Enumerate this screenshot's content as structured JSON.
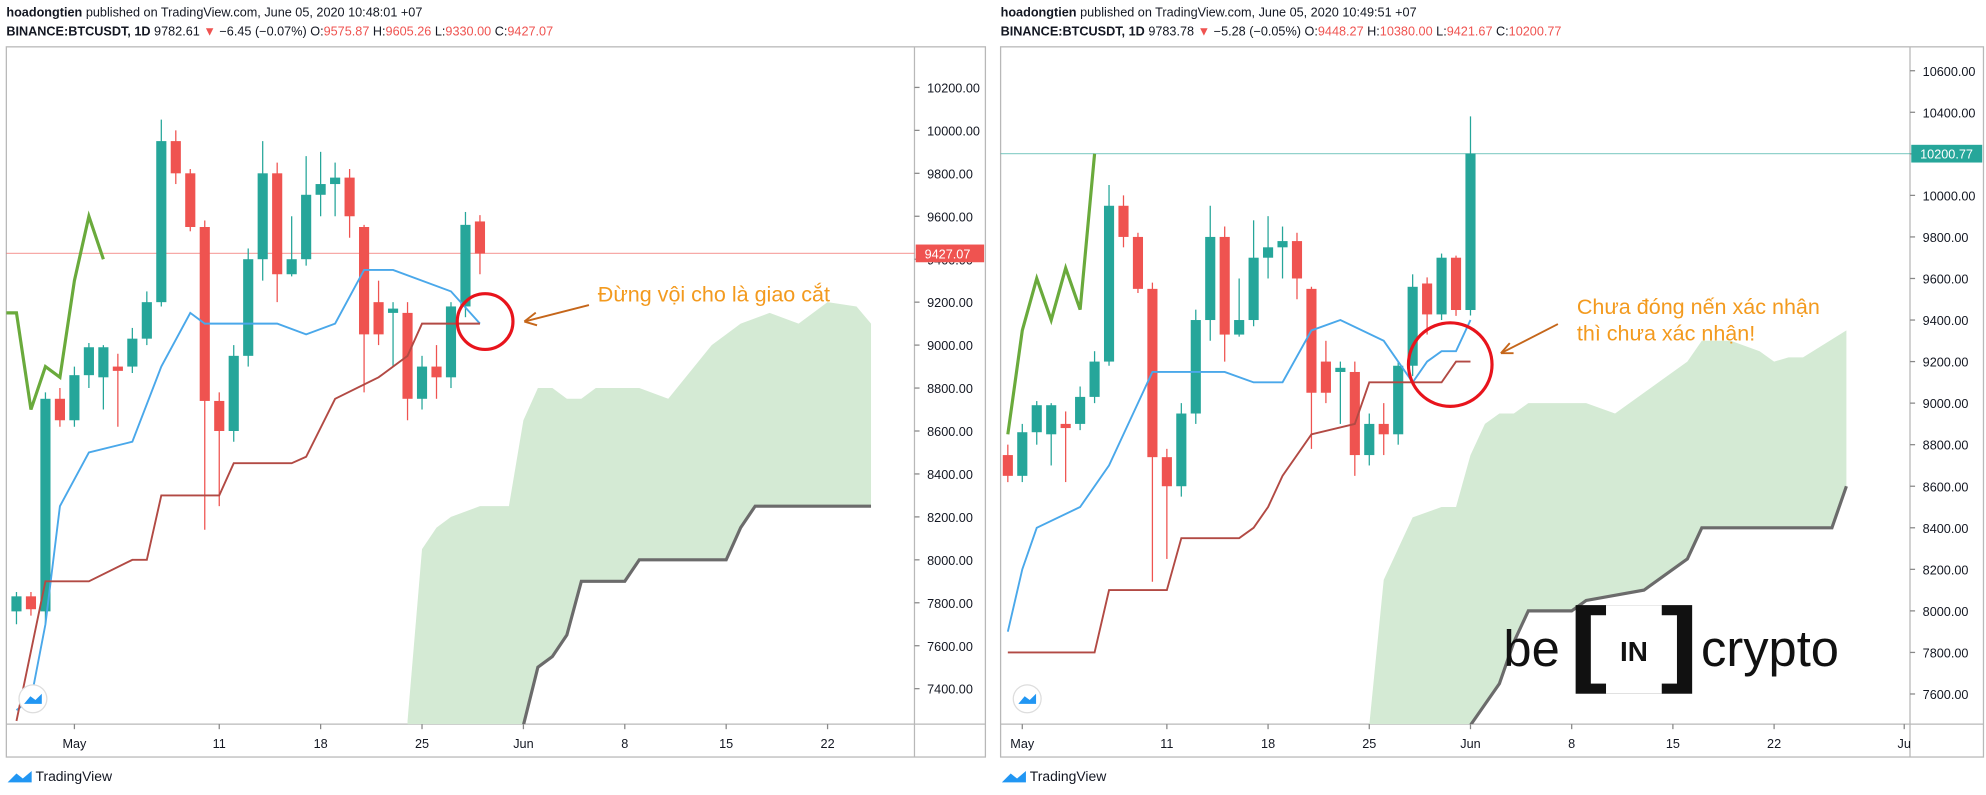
{
  "chart_data": [
    {
      "type": "candlestick",
      "header": {
        "author": "hoadongtien",
        "published": "published on TradingView.com, June 05, 2020 10:48:01 +07",
        "symbol": "BINANCE:BTCUSDT, 1D",
        "last": "9782.61",
        "arrow": "▼",
        "change": "−6.45 (−0.07%)",
        "ohlc": [
          {
            "label": "O:",
            "value": "9575.87"
          },
          {
            "label": "H:",
            "value": "9605.26"
          },
          {
            "label": "L:",
            "value": "9330.00"
          },
          {
            "label": "C:",
            "value": "9427.07"
          }
        ]
      },
      "candles": {
        "x": [
          -3,
          -2,
          -1,
          0,
          1,
          2,
          3,
          4,
          5,
          6,
          7,
          8,
          9,
          10,
          11,
          12,
          13,
          14,
          15,
          16,
          17,
          18,
          19,
          20,
          21,
          22,
          23,
          24,
          25,
          26,
          27,
          28,
          29
        ],
        "open": [
          7760,
          7830,
          7760,
          8750,
          8650,
          8860,
          8850,
          8900,
          8900,
          9030,
          9200,
          9950,
          9800,
          9550,
          8740,
          8600,
          8950,
          9400,
          9800,
          9330,
          9400,
          9700,
          9750,
          9780,
          9550,
          9200,
          9150,
          9150,
          8750,
          8900,
          8850,
          9180,
          9575.87
        ],
        "high": [
          7850,
          7850,
          8780,
          8800,
          8900,
          9010,
          9000,
          8960,
          9080,
          9250,
          10050,
          10000,
          9820,
          9580,
          8780,
          9000,
          9450,
          9950,
          9850,
          9600,
          9880,
          9900,
          9850,
          9820,
          9560,
          9300,
          9200,
          9200,
          8950,
          9000,
          9200,
          9620,
          9605.26
        ],
        "low": [
          7700,
          7740,
          7700,
          8620,
          8620,
          8800,
          8700,
          8620,
          8870,
          9000,
          9180,
          9750,
          9530,
          8140,
          8250,
          8550,
          8900,
          9300,
          9200,
          9320,
          9370,
          9600,
          9600,
          9500,
          8780,
          9000,
          8900,
          8650,
          8700,
          8750,
          8800,
          9130,
          9330
        ],
        "close": [
          7830,
          7770,
          8750,
          8650,
          8860,
          8990,
          8990,
          8880,
          9030,
          9200,
          9950,
          9800,
          9550,
          8740,
          8600,
          8950,
          9400,
          9800,
          9330,
          9400,
          9700,
          9750,
          9780,
          9600,
          9050,
          9050,
          9170,
          8750,
          8900,
          8850,
          9180,
          9560,
          9427.07
        ],
        "up_color": "#26a69a",
        "down_color": "#ef5350"
      },
      "lines": [
        {
          "color": "#4aa8ea",
          "x": [
            -3,
            -2,
            -1,
            0,
            2,
            5,
            7,
            9,
            10,
            11,
            15,
            17,
            19,
            21,
            23,
            27,
            29
          ],
          "values": [
            7300,
            7350,
            7700,
            8250,
            8500,
            8550,
            8900,
            9150,
            9100,
            9100,
            9100,
            9050,
            9100,
            9350,
            9350,
            9250,
            9100
          ]
        },
        {
          "color": "#b24a44",
          "x": [
            -3,
            -1,
            2,
            5,
            6,
            7,
            11,
            12,
            16,
            17,
            19,
            22,
            24,
            25,
            29
          ],
          "values": [
            7250,
            7900,
            7900,
            8000,
            8000,
            8300,
            8300,
            8450,
            8450,
            8480,
            8750,
            8850,
            8950,
            9100,
            9100
          ]
        },
        {
          "color": "#6aaa3c",
          "x": [
            -4,
            -3,
            -2,
            -1,
            0,
            1,
            2,
            3
          ],
          "values": [
            9150,
            9150,
            8700,
            8900,
            8850,
            9300,
            9600,
            9400
          ]
        }
      ],
      "cloud": {
        "fill": "#d4ead4",
        "line_color": "#6b6b6b",
        "upper": {
          "x": [
            24,
            25,
            26,
            27,
            29,
            31,
            32,
            33,
            34,
            35,
            36,
            37,
            40,
            42,
            45,
            47,
            49,
            51,
            53,
            55,
            56
          ],
          "values": [
            7250,
            8050,
            8150,
            8200,
            8250,
            8250,
            8650,
            8800,
            8800,
            8750,
            8750,
            8800,
            8800,
            8750,
            9000,
            9100,
            9150,
            9100,
            9200,
            9180,
            9100
          ]
        },
        "lower": {
          "x": [
            24,
            32,
            33,
            34,
            35,
            36,
            39,
            40,
            46,
            47,
            48,
            56
          ],
          "values": [
            7000,
            7230,
            7500,
            7550,
            7650,
            7900,
            7900,
            8000,
            8000,
            8150,
            8250,
            8250
          ]
        }
      },
      "xlim": [
        -3.7,
        59
      ],
      "xticks": [
        {
          "value": 1,
          "label": "May"
        },
        11,
        18,
        25,
        {
          "value": 32,
          "label": "Jun"
        },
        {
          "value": 39,
          "label": "8"
        },
        {
          "value": 46,
          "label": "15"
        },
        {
          "value": 53,
          "label": "22"
        }
      ],
      "ylim": [
        7235,
        10389
      ],
      "yticks": [
        {
          "value": 7400,
          "label": "7400.00"
        },
        {
          "value": 7600,
          "label": "7600.00"
        },
        {
          "value": 7800,
          "label": "7800.00"
        },
        {
          "value": 8000,
          "label": "8000.00"
        },
        {
          "value": 8200,
          "label": "8200.00"
        },
        {
          "value": 8400,
          "label": "8400.00"
        },
        {
          "value": 8600,
          "label": "8600.00"
        },
        {
          "value": 8800,
          "label": "8800.00"
        },
        {
          "value": 9000,
          "label": "9000.00"
        },
        {
          "value": 9200,
          "label": "9200.00"
        },
        {
          "value": 9400,
          "label": "9400.00"
        },
        {
          "value": 9600,
          "label": "9600.00"
        },
        {
          "value": 9800,
          "label": "9800.00"
        },
        {
          "value": 10000,
          "label": "10000.00"
        },
        {
          "value": 10200,
          "label": "10200.00"
        }
      ],
      "last_price": {
        "value": 9427.07,
        "color": "#ef5350"
      },
      "annotation": {
        "lines": [
          "Đừng vội cho là giao cắt"
        ],
        "color": "#f39a1e"
      },
      "footer": "TradingView"
    },
    {
      "type": "candlestick",
      "header": {
        "author": "hoadongtien",
        "published": "published on TradingView.com, June 05, 2020 10:49:51 +07",
        "symbol": "BINANCE:BTCUSDT, 1D",
        "last": "9783.78",
        "arrow": "▼",
        "change": "−5.28 (−0.05%)",
        "ohlc": [
          {
            "label": "O:",
            "value": "9448.27"
          },
          {
            "label": "H:",
            "value": "10380.00"
          },
          {
            "label": "L:",
            "value": "9421.67"
          },
          {
            "label": "C:",
            "value": "10200.77"
          }
        ]
      },
      "candles": {
        "x": [
          0,
          1,
          2,
          3,
          4,
          5,
          6,
          7,
          8,
          9,
          10,
          11,
          12,
          13,
          14,
          15,
          16,
          17,
          18,
          19,
          20,
          21,
          22,
          23,
          24,
          25,
          26,
          27,
          28,
          29,
          30,
          31,
          32
        ],
        "open": [
          8750,
          8650,
          8860,
          8850,
          8900,
          8900,
          9030,
          9200,
          9950,
          9800,
          9550,
          8740,
          8600,
          8950,
          9400,
          9800,
          9330,
          9400,
          9700,
          9750,
          9780,
          9550,
          9200,
          9150,
          9150,
          8750,
          8900,
          8850,
          9180,
          9575.87,
          9427.07,
          9700,
          9448.27
        ],
        "high": [
          8800,
          8900,
          9010,
          9000,
          8960,
          9080,
          9250,
          10050,
          10000,
          9820,
          9580,
          8780,
          9000,
          9450,
          9950,
          9850,
          9600,
          9880,
          9900,
          9850,
          9820,
          9560,
          9300,
          9200,
          9200,
          8950,
          9000,
          9200,
          9620,
          9605.26,
          9720,
          9710,
          10380
        ],
        "low": [
          8620,
          8620,
          8800,
          8700,
          8620,
          8870,
          9000,
          9180,
          9750,
          9530,
          8140,
          8250,
          8550,
          8900,
          9300,
          9200,
          9320,
          9370,
          9600,
          9600,
          9500,
          8780,
          9000,
          8900,
          8650,
          8700,
          8750,
          8800,
          9130,
          9330,
          9400,
          9420,
          9421.67
        ],
        "close": [
          8650,
          8860,
          8990,
          8990,
          8880,
          9030,
          9200,
          9950,
          9800,
          9550,
          8740,
          8600,
          8950,
          9400,
          9800,
          9330,
          9400,
          9700,
          9750,
          9780,
          9600,
          9050,
          9050,
          9170,
          8750,
          8900,
          8850,
          9180,
          9560,
          9427.07,
          9700,
          9448.27,
          10200.77
        ],
        "up_color": "#26a69a",
        "down_color": "#ef5350"
      },
      "lines": [
        {
          "color": "#4aa8ea",
          "x": [
            0,
            1,
            2,
            5,
            7,
            9,
            10,
            11,
            15,
            17,
            19,
            21,
            23,
            26,
            28,
            29,
            30,
            31,
            32
          ],
          "values": [
            7900,
            8200,
            8400,
            8500,
            8700,
            9000,
            9150,
            9150,
            9150,
            9100,
            9100,
            9350,
            9400,
            9300,
            9100,
            9200,
            9250,
            9250,
            9400
          ]
        },
        {
          "color": "#b24a44",
          "x": [
            0,
            6,
            7,
            11,
            12,
            16,
            17,
            18,
            19,
            21,
            24,
            25,
            30,
            31,
            32
          ],
          "values": [
            7800,
            7800,
            8100,
            8100,
            8350,
            8350,
            8400,
            8500,
            8650,
            8850,
            8900,
            9100,
            9100,
            9200,
            9200
          ]
        },
        {
          "color": "#6aaa3c",
          "x": [
            0,
            1,
            2,
            3,
            4,
            5,
            6
          ],
          "values": [
            8850,
            9350,
            9600,
            9400,
            9650,
            9450,
            10200
          ]
        }
      ],
      "cloud": {
        "fill": "#d4ead4",
        "line_color": "#6b6b6b",
        "upper": {
          "x": [
            25,
            26,
            27,
            28,
            30,
            31,
            32,
            33,
            34,
            35,
            36,
            40,
            42,
            45,
            47,
            48,
            50,
            52,
            53,
            54,
            55,
            58
          ],
          "values": [
            7450,
            8150,
            8300,
            8450,
            8500,
            8500,
            8750,
            8900,
            8950,
            8950,
            9000,
            9000,
            8950,
            9100,
            9200,
            9300,
            9300,
            9250,
            9200,
            9220,
            9220,
            9350
          ]
        },
        "lower": {
          "x": [
            25,
            32,
            33,
            34,
            35,
            36,
            39,
            40,
            44,
            47,
            48,
            57,
            58
          ],
          "values": [
            7200,
            7450,
            7550,
            7650,
            7850,
            8000,
            8000,
            8050,
            8100,
            8250,
            8400,
            8400,
            8600
          ]
        }
      },
      "xlim": [
        -0.5,
        62.4
      ],
      "xticks": [
        {
          "value": 1,
          "label": "May"
        },
        11,
        18,
        25,
        {
          "value": 32,
          "label": "Jun"
        },
        {
          "value": 39,
          "label": "8"
        },
        {
          "value": 46,
          "label": "15"
        },
        {
          "value": 53,
          "label": "22"
        },
        {
          "value": 62,
          "label": "Ju"
        }
      ],
      "ylim": [
        7455,
        10715
      ],
      "yticks": [
        {
          "value": 7600,
          "label": "7600.00"
        },
        {
          "value": 7800,
          "label": "7800.00"
        },
        {
          "value": 8000,
          "label": "8000.00"
        },
        {
          "value": 8200,
          "label": "8200.00"
        },
        {
          "value": 8400,
          "label": "8400.00"
        },
        {
          "value": 8600,
          "label": "8600.00"
        },
        {
          "value": 8800,
          "label": "8800.00"
        },
        {
          "value": 9000,
          "label": "9000.00"
        },
        {
          "value": 9200,
          "label": "9200.00"
        },
        {
          "value": 9400,
          "label": "9400.00"
        },
        {
          "value": 9600,
          "label": "9600.00"
        },
        {
          "value": 9800,
          "label": "9800.00"
        },
        {
          "value": 10000,
          "label": "10000.00"
        },
        {
          "value": 10200,
          "label": "10200.00"
        },
        {
          "value": 10400,
          "label": "10400.00"
        },
        {
          "value": 10600,
          "label": "10600.00"
        }
      ],
      "last_price": {
        "value": 10200.77,
        "color": "#26a69a"
      },
      "annotation": {
        "lines": [
          "Chưa đóng nến xác nhận",
          "thì chưa xác nhận!"
        ],
        "color": "#f39a1e"
      },
      "footer": "TradingView"
    }
  ],
  "logo": {
    "left": "be",
    "mid": "IN",
    "right": "crypto"
  }
}
